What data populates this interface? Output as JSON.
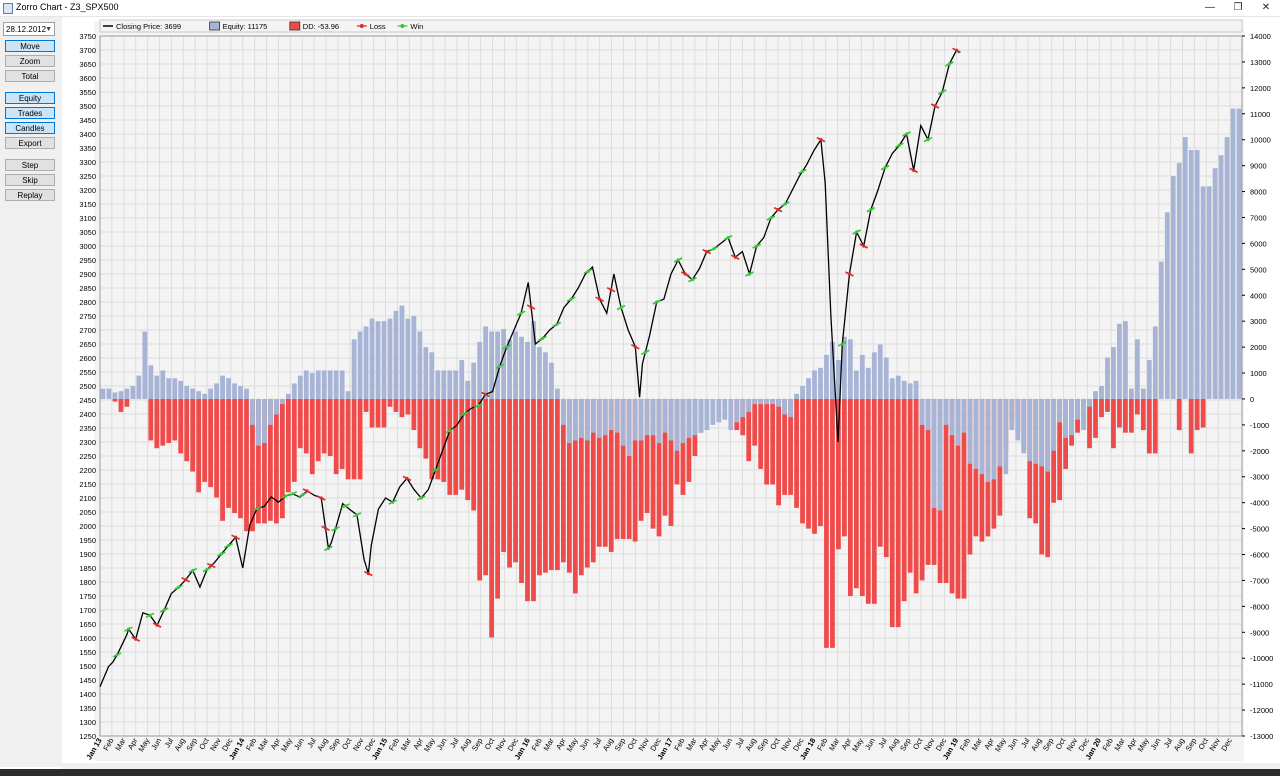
{
  "window": {
    "title": "Zorro Chart - Z3_SPX500",
    "minimize": "—",
    "restore": "❐",
    "close": "✕"
  },
  "panel": {
    "date": "28.12.2012",
    "buttons": [
      {
        "label": "Move",
        "active": true
      },
      {
        "label": "Zoom",
        "active": false
      },
      {
        "label": "Total",
        "active": false
      },
      {
        "label": "Equity",
        "active": true
      },
      {
        "label": "Trades",
        "active": true
      },
      {
        "label": "Candles",
        "active": true
      },
      {
        "label": "Export",
        "active": false
      },
      {
        "label": "Step",
        "active": false
      },
      {
        "label": "Skip",
        "active": false
      },
      {
        "label": "Replay",
        "active": false
      }
    ]
  },
  "chart_data": {
    "type": "line",
    "legend": [
      {
        "label": "Closing Price: 3699",
        "kind": "line",
        "color": "#000000"
      },
      {
        "label": "Equity: 11175",
        "kind": "box",
        "color": "#a7b4d6"
      },
      {
        "label": "DD: -53.96",
        "kind": "box",
        "color": "#ef4b4b"
      },
      {
        "label": "Loss",
        "kind": "dot",
        "color": "#d92b2b"
      },
      {
        "label": "Win",
        "kind": "dot",
        "color": "#39c439"
      }
    ],
    "legend_position": "top-left",
    "grid": true,
    "y_left": {
      "min": 1250,
      "max": 3750,
      "step": 50
    },
    "y_right": {
      "min": -13000,
      "max": 14000,
      "step": 1000
    },
    "colors": {
      "equity": "#a7b4d6",
      "drawdown": "#ef4b4b",
      "price": "#000000",
      "win": "#39c439",
      "loss": "#d92b2b",
      "grid": "#dddddd"
    },
    "x_labels": [
      "Jan 13",
      "Feb",
      "Mar",
      "Apr",
      "May",
      "Jun",
      "Jul",
      "Aug",
      "Sep",
      "Oct",
      "Nov",
      "Dec",
      "Jan 14",
      "Feb",
      "Mar",
      "Apr",
      "May",
      "Jun",
      "Jul",
      "Aug",
      "Sep",
      "Oct",
      "Nov",
      "Dec",
      "Jan 15",
      "Feb",
      "Mar",
      "Apr",
      "May",
      "Jun",
      "Jul",
      "Aug",
      "Sep",
      "Oct",
      "Nov",
      "Dec",
      "Jan 16",
      "Feb",
      "Mar",
      "Apr",
      "May",
      "Jun",
      "Jul",
      "Aug",
      "Sep",
      "Oct",
      "Nov",
      "Dec",
      "Jan 17",
      "Feb",
      "Mar",
      "Apr",
      "May",
      "Jun",
      "Jul",
      "Aug",
      "Sep",
      "Oct",
      "Nov",
      "Dec",
      "Jan 18",
      "Feb",
      "Mar",
      "Apr",
      "May",
      "Jun",
      "Jul",
      "Aug",
      "Sep",
      "Oct",
      "Nov",
      "Dec",
      "Jan 19",
      "Feb",
      "Mar",
      "Apr",
      "May",
      "Jun",
      "Jul",
      "Aug",
      "Sep",
      "Oct",
      "Nov",
      "Dec",
      "Jan 20",
      "Feb",
      "Mar",
      "Apr",
      "May",
      "Jun",
      "Jul",
      "Aug",
      "Sep",
      "Oct",
      "Nov",
      "Dec"
    ],
    "equity": [
      400,
      400,
      250,
      300,
      400,
      500,
      900,
      2600,
      1300,
      900,
      1100,
      800,
      800,
      700,
      500,
      400,
      300,
      200,
      400,
      600,
      900,
      800,
      600,
      500,
      400,
      -1000,
      -1800,
      -1700,
      -1000,
      -600,
      -200,
      200,
      600,
      900,
      1100,
      1000,
      1100,
      1100,
      1100,
      1100,
      1100,
      300,
      2300,
      2600,
      2800,
      3100,
      3000,
      3000,
      3100,
      3400,
      3600,
      3100,
      3200,
      2600,
      2000,
      1800,
      1100,
      1100,
      1100,
      1100,
      1500,
      700,
      1400,
      2200,
      2800,
      2600,
      2600,
      2700,
      2300,
      2600,
      2400,
      2200,
      3000,
      2000,
      1800,
      1400,
      400,
      -1000,
      -1700,
      -1600,
      -1500,
      -1600,
      -1300,
      -1500,
      -1400,
      -1200,
      -1300,
      -1800,
      -2200,
      -1600,
      -1600,
      -1400,
      -1400,
      -1700,
      -1300,
      -1600,
      -2000,
      -1700,
      -1500,
      -1400,
      -1300,
      -1200,
      -1000,
      -900,
      -800,
      -1200,
      -900,
      -700,
      -500,
      -200,
      -200,
      -200,
      -200,
      -300,
      -600,
      -700,
      200,
      500,
      800,
      1100,
      1200,
      1700,
      2200,
      1500,
      2400,
      2300,
      1100,
      1700,
      1200,
      1800,
      2100,
      1600,
      800,
      900,
      700,
      600,
      700,
      -1000,
      -1200,
      -4200,
      -4300,
      -1000,
      -1400,
      -1800,
      -1300,
      -2500,
      -2700,
      -2900,
      -3200,
      -3100,
      -2600,
      -2900,
      -1200,
      -1600,
      -2100,
      -2400,
      -2500,
      -2600,
      -2800,
      -2000,
      -900,
      -1500,
      -1400,
      -800,
      -1200,
      -300,
      300,
      500,
      1600,
      2000,
      2900,
      3000,
      400,
      2300,
      400,
      1500,
      2800,
      5300,
      7200,
      8600,
      9100,
      10100,
      9600,
      9600,
      8200,
      8200,
      8900,
      9400,
      10100,
      11200,
      11200
    ],
    "drawdown": [
      0,
      0,
      -100,
      -500,
      -300,
      0,
      0,
      0,
      -1600,
      -1900,
      -1800,
      -1700,
      -1600,
      -2100,
      -2400,
      -2800,
      -3600,
      -3200,
      -3400,
      -3800,
      -4700,
      -4200,
      -4400,
      -4600,
      -5100,
      -5100,
      -4800,
      -4800,
      -4700,
      -4800,
      -4600,
      -3600,
      -3200,
      -1900,
      -2100,
      -2900,
      -2400,
      -2100,
      -2200,
      -2900,
      -2700,
      -3100,
      -3100,
      -3100,
      -500,
      -1100,
      -1100,
      -1100,
      -300,
      -500,
      -700,
      -600,
      -1200,
      -1900,
      -2300,
      -3100,
      -3100,
      -3200,
      -3700,
      -3700,
      -3500,
      -3900,
      -4300,
      -7000,
      -6800,
      -9200,
      -7700,
      -5900,
      -6500,
      -6300,
      -7100,
      -7800,
      -7800,
      -6800,
      -6700,
      -6600,
      -6600,
      -6300,
      -6700,
      -7500,
      -6800,
      -6500,
      -6300,
      -5700,
      -5700,
      -5900,
      -5400,
      -5400,
      -5400,
      -5500,
      -4700,
      -4400,
      -5000,
      -5300,
      -4500,
      -4900,
      -3300,
      -3700,
      -3200,
      -2200,
      -1300,
      0,
      0,
      0,
      0,
      0,
      -1200,
      -1400,
      -2400,
      -1800,
      -2700,
      -3300,
      -3300,
      -4100,
      -3700,
      -3700,
      -4200,
      -4800,
      -5000,
      -5200,
      -4900,
      -9600,
      -9600,
      -5800,
      -5300,
      -7600,
      -7300,
      -7600,
      -7900,
      -7900,
      -5700,
      -6100,
      -8800,
      -8800,
      -7800,
      -6700,
      -7500,
      -7000,
      -6400,
      -6400,
      -7100,
      -7100,
      -7500,
      -7700,
      -7700,
      -6000,
      -5300,
      -5500,
      -5300,
      -5000,
      -4500,
      -2000,
      -900,
      -1300,
      -2000,
      -4600,
      -4800,
      -6000,
      -6100,
      -4000,
      -3900,
      -2700,
      -1800,
      -1300,
      -900,
      -1900,
      -1500,
      -700,
      -500,
      -1900,
      -1100,
      -1300,
      -1300,
      -600,
      -1200,
      -2100,
      -2100,
      0,
      0,
      0,
      -1200,
      0,
      -2100,
      -1200,
      -1100,
      0,
      0
    ],
    "price": [
      [
        0,
        1426
      ],
      [
        0.03,
        1462
      ],
      [
        0.06,
        1498
      ],
      [
        0.09,
        1514
      ],
      [
        0.12,
        1540
      ],
      [
        0.16,
        1582
      ],
      [
        0.19,
        1614
      ],
      [
        0.2,
        1632
      ],
      [
        0.25,
        1596
      ],
      [
        0.3,
        1690
      ],
      [
        0.35,
        1681
      ],
      [
        0.4,
        1646
      ],
      [
        0.45,
        1700
      ],
      [
        0.5,
        1759
      ],
      [
        0.55,
        1781
      ],
      [
        0.6,
        1808
      ],
      [
        0.65,
        1841
      ],
      [
        0.7,
        1782
      ],
      [
        0.75,
        1845
      ],
      [
        0.8,
        1868
      ],
      [
        0.85,
        1900
      ],
      [
        0.9,
        1930
      ],
      [
        0.95,
        1960
      ],
      [
        1.0,
        1850
      ],
      [
        1.05,
        2005
      ],
      [
        1.1,
        2062
      ],
      [
        1.15,
        2070
      ],
      [
        1.2,
        2104
      ],
      [
        1.25,
        2085
      ],
      [
        1.3,
        2107
      ],
      [
        1.35,
        2115
      ],
      [
        1.4,
        2103
      ],
      [
        1.45,
        2125
      ],
      [
        1.5,
        2110
      ],
      [
        1.55,
        2100
      ],
      [
        1.6,
        1920
      ],
      [
        1.62,
        1940
      ],
      [
        1.65,
        1990
      ],
      [
        1.7,
        2080
      ],
      [
        1.75,
        2059
      ],
      [
        1.8,
        2040
      ],
      [
        1.85,
        1880
      ],
      [
        1.88,
        1830
      ],
      [
        1.9,
        1930
      ],
      [
        1.95,
        2060
      ],
      [
        2.0,
        2100
      ],
      [
        2.05,
        2085
      ],
      [
        2.1,
        2140
      ],
      [
        2.15,
        2170
      ],
      [
        2.2,
        2130
      ],
      [
        2.25,
        2100
      ],
      [
        2.3,
        2130
      ],
      [
        2.35,
        2200
      ],
      [
        2.4,
        2270
      ],
      [
        2.45,
        2340
      ],
      [
        2.5,
        2360
      ],
      [
        2.55,
        2400
      ],
      [
        2.6,
        2420
      ],
      [
        2.65,
        2430
      ],
      [
        2.7,
        2470
      ],
      [
        2.75,
        2480
      ],
      [
        2.8,
        2570
      ],
      [
        2.85,
        2640
      ],
      [
        2.9,
        2700
      ],
      [
        2.95,
        2760
      ],
      [
        3.0,
        2870
      ],
      [
        3.05,
        2650
      ],
      [
        3.1,
        2670
      ],
      [
        3.15,
        2700
      ],
      [
        3.2,
        2720
      ],
      [
        3.25,
        2780
      ],
      [
        3.3,
        2810
      ],
      [
        3.35,
        2850
      ],
      [
        3.4,
        2900
      ],
      [
        3.45,
        2925
      ],
      [
        3.5,
        2810
      ],
      [
        3.55,
        2760
      ],
      [
        3.6,
        2900
      ],
      [
        3.65,
        2780
      ],
      [
        3.7,
        2700
      ],
      [
        3.75,
        2640
      ],
      [
        3.78,
        2460
      ],
      [
        3.8,
        2580
      ],
      [
        3.85,
        2680
      ],
      [
        3.9,
        2800
      ],
      [
        3.95,
        2810
      ],
      [
        4.0,
        2900
      ],
      [
        4.05,
        2950
      ],
      [
        4.1,
        2900
      ],
      [
        4.15,
        2880
      ],
      [
        4.2,
        2920
      ],
      [
        4.25,
        2980
      ],
      [
        4.3,
        2990
      ],
      [
        4.35,
        3010
      ],
      [
        4.4,
        3030
      ],
      [
        4.45,
        2960
      ],
      [
        4.5,
        2980
      ],
      [
        4.55,
        2900
      ],
      [
        4.6,
        3000
      ],
      [
        4.65,
        3030
      ],
      [
        4.7,
        3100
      ],
      [
        4.75,
        3130
      ],
      [
        4.8,
        3150
      ],
      [
        4.85,
        3200
      ],
      [
        4.9,
        3250
      ],
      [
        4.95,
        3290
      ],
      [
        5.0,
        3340
      ],
      [
        5.05,
        3380
      ],
      [
        5.08,
        3225
      ],
      [
        5.12,
        2750
      ],
      [
        5.15,
        2480
      ],
      [
        5.17,
        2300
      ],
      [
        5.2,
        2650
      ],
      [
        5.25,
        2900
      ],
      [
        5.3,
        3050
      ],
      [
        5.35,
        3000
      ],
      [
        5.4,
        3130
      ],
      [
        5.45,
        3200
      ],
      [
        5.5,
        3280
      ],
      [
        5.55,
        3330
      ],
      [
        5.6,
        3360
      ],
      [
        5.65,
        3400
      ],
      [
        5.7,
        3270
      ],
      [
        5.75,
        3430
      ],
      [
        5.8,
        3380
      ],
      [
        5.85,
        3500
      ],
      [
        5.9,
        3550
      ],
      [
        5.95,
        3650
      ],
      [
        6.0,
        3699
      ],
      [
        6.02,
        3690
      ]
    ],
    "win_positions": [
      0.12,
      0.2,
      0.35,
      0.45,
      0.55,
      0.65,
      0.75,
      0.85,
      0.9,
      1.1,
      1.3,
      1.35,
      1.42,
      1.6,
      1.65,
      1.72,
      1.8,
      2.05,
      2.25,
      2.35,
      2.45,
      2.55,
      2.65,
      2.8,
      2.85,
      2.95,
      3.1,
      3.2,
      3.3,
      3.42,
      3.65,
      3.82,
      3.9,
      4.05,
      4.15,
      4.3,
      4.4,
      4.55,
      4.6,
      4.7,
      4.8,
      4.92,
      5.2,
      5.3,
      5.4,
      5.5,
      5.6,
      5.65,
      5.8,
      5.9,
      5.95
    ],
    "loss_positions": [
      0.25,
      0.4,
      0.6,
      0.78,
      0.95,
      1.45,
      1.55,
      1.58,
      1.88,
      2.15,
      2.7,
      3.02,
      3.5,
      3.58,
      3.75,
      4.1,
      4.25,
      4.45,
      4.75,
      5.05,
      5.25,
      5.35,
      5.7,
      5.85,
      6.0
    ]
  }
}
